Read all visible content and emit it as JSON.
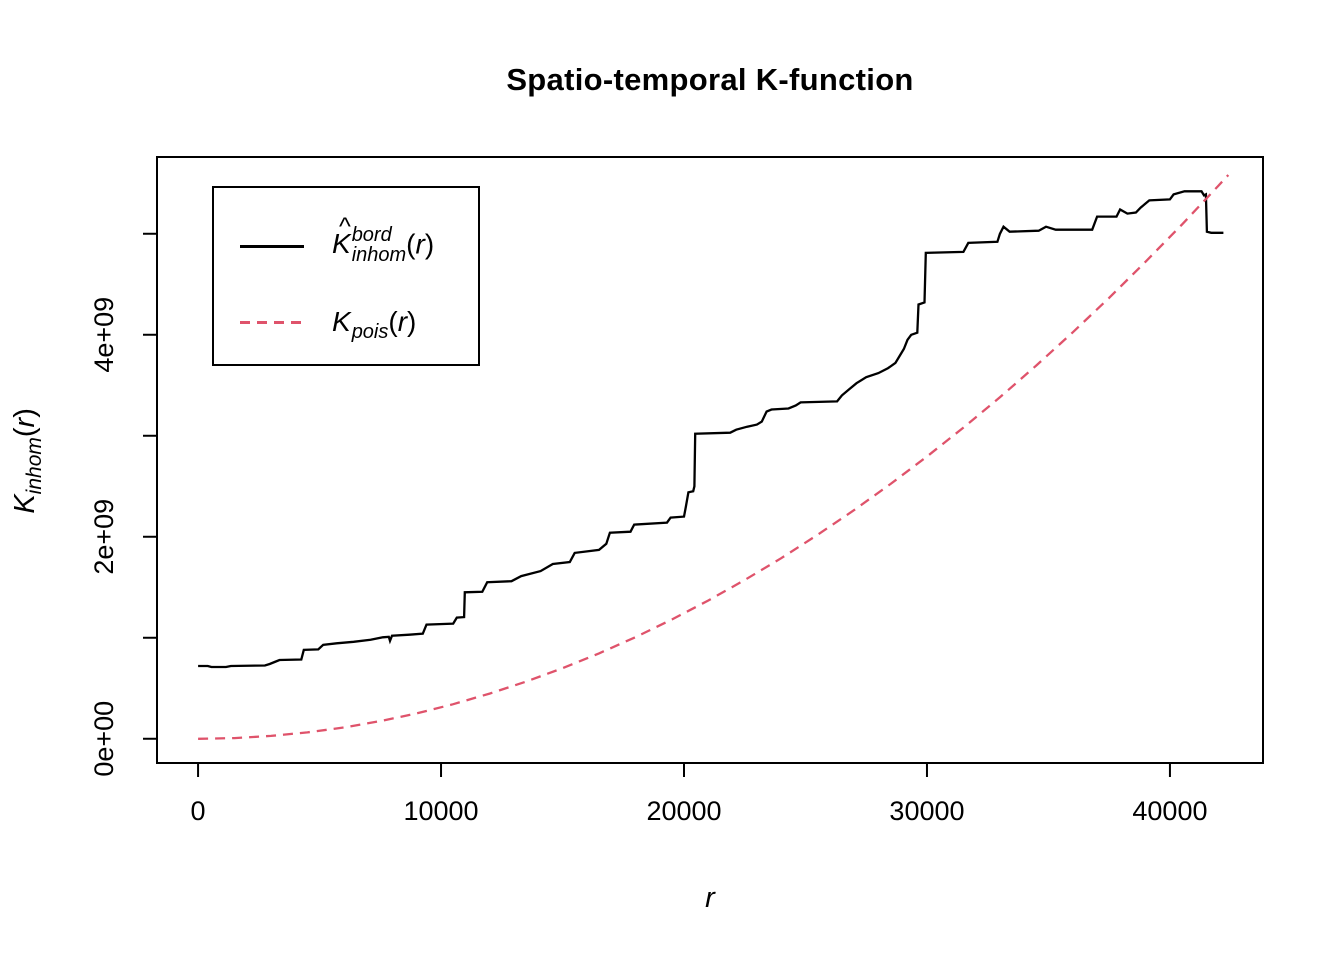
{
  "title": "Spatio-temporal K-function",
  "colors": {
    "foreground": "#000000",
    "background": "#ffffff",
    "inhom_curve": "#000000",
    "pois_curve": "#DF536B"
  },
  "x_axis": {
    "label": "r"
  },
  "y_axis": {
    "label_main": "K",
    "label_sub": "inhom",
    "label_open": "(",
    "label_arg": "r",
    "label_close": ")"
  },
  "legend": {
    "items": [
      {
        "hat": "^",
        "main": "K",
        "sup": "bord",
        "sub": "inhom",
        "open": "(",
        "arg": "r",
        "close": ")",
        "line_style": "solid",
        "color": "#000000"
      },
      {
        "main": "K",
        "sub": "pois",
        "open": "(",
        "arg": "r",
        "close": ")",
        "line_style": "dashed",
        "color": "#DF536B"
      }
    ]
  },
  "chart_data": {
    "type": "line",
    "title": "Spatio-temporal K-function",
    "xlabel": "r",
    "ylabel": "K_inhom(r)",
    "xlim": [
      -1690,
      43830
    ],
    "ylim": [
      -240000000.0,
      5760000000.0
    ],
    "grid": false,
    "legend_position": "top-left",
    "x_ticks": [
      {
        "v": 0,
        "label": "0"
      },
      {
        "v": 10000,
        "label": "10000"
      },
      {
        "v": 20000,
        "label": "20000"
      },
      {
        "v": 30000,
        "label": "30000"
      },
      {
        "v": 40000,
        "label": "40000"
      }
    ],
    "y_ticks": [
      {
        "v": 0,
        "label": "0e+00"
      },
      {
        "v": 1000000000.0
      },
      {
        "v": 2000000000.0,
        "label": "2e+09"
      },
      {
        "v": 3000000000.0
      },
      {
        "v": 4000000000.0,
        "label": "4e+09"
      },
      {
        "v": 5000000000.0
      }
    ],
    "series": [
      {
        "name": "K-inhom-bord-estimate",
        "style": "solid",
        "color": "#000000",
        "points": [
          [
            0,
            720000000.0
          ],
          [
            400,
            720000000.0
          ],
          [
            550,
            710000000.0
          ],
          [
            1150,
            710000000.0
          ],
          [
            1350,
            720000000.0
          ],
          [
            2750,
            725000000.0
          ],
          [
            2950,
            740000000.0
          ],
          [
            3150,
            760000000.0
          ],
          [
            3350,
            780000000.0
          ],
          [
            4250,
            785000000.0
          ],
          [
            4350,
            880000000.0
          ],
          [
            4950,
            885000000.0
          ],
          [
            5150,
            930000000.0
          ],
          [
            5700,
            945000000.0
          ],
          [
            6400,
            960000000.0
          ],
          [
            7100,
            980000000.0
          ],
          [
            7600,
            1005000000.0
          ],
          [
            7850,
            1010000000.0
          ],
          [
            7900,
            970000000.0
          ],
          [
            7980,
            1020000000.0
          ],
          [
            8700,
            1030000000.0
          ],
          [
            9250,
            1040000000.0
          ],
          [
            9400,
            1130000000.0
          ],
          [
            10500,
            1140000000.0
          ],
          [
            10650,
            1200000000.0
          ],
          [
            10950,
            1205000000.0
          ],
          [
            10980,
            1450000000.0
          ],
          [
            11700,
            1455000000.0
          ],
          [
            11900,
            1550000000.0
          ],
          [
            12900,
            1560000000.0
          ],
          [
            13300,
            1610000000.0
          ],
          [
            14100,
            1660000000.0
          ],
          [
            14600,
            1730000000.0
          ],
          [
            15300,
            1750000000.0
          ],
          [
            15500,
            1840000000.0
          ],
          [
            16500,
            1870000000.0
          ],
          [
            16800,
            1930000000.0
          ],
          [
            16950,
            2040000000.0
          ],
          [
            17800,
            2050000000.0
          ],
          [
            17950,
            2120000000.0
          ],
          [
            19300,
            2140000000.0
          ],
          [
            19450,
            2190000000.0
          ],
          [
            20000,
            2200000000.0
          ],
          [
            20080,
            2300000000.0
          ],
          [
            20180,
            2440000000.0
          ],
          [
            20380,
            2450000000.0
          ],
          [
            20430,
            2500000000.0
          ],
          [
            20460,
            3020000000.0
          ],
          [
            21900,
            3030000000.0
          ],
          [
            22150,
            3060000000.0
          ],
          [
            22600,
            3090000000.0
          ],
          [
            23000,
            3110000000.0
          ],
          [
            23200,
            3140000000.0
          ],
          [
            23400,
            3240000000.0
          ],
          [
            23600,
            3260000000.0
          ],
          [
            24300,
            3270000000.0
          ],
          [
            24600,
            3300000000.0
          ],
          [
            24800,
            3330000000.0
          ],
          [
            26300,
            3340000000.0
          ],
          [
            26500,
            3400000000.0
          ],
          [
            26800,
            3460000000.0
          ],
          [
            27100,
            3520000000.0
          ],
          [
            27500,
            3580000000.0
          ],
          [
            28000,
            3620000000.0
          ],
          [
            28400,
            3670000000.0
          ],
          [
            28700,
            3720000000.0
          ],
          [
            28900,
            3800000000.0
          ],
          [
            29050,
            3860000000.0
          ],
          [
            29200,
            3950000000.0
          ],
          [
            29350,
            4000000000.0
          ],
          [
            29600,
            4020000000.0
          ],
          [
            29650,
            4300000000.0
          ],
          [
            29900,
            4320000000.0
          ],
          [
            29950,
            4810000000.0
          ],
          [
            31500,
            4820000000.0
          ],
          [
            31700,
            4910000000.0
          ],
          [
            32900,
            4920000000.0
          ],
          [
            33000,
            5000000000.0
          ],
          [
            33150,
            5070000000.0
          ],
          [
            33400,
            5020000000.0
          ],
          [
            34600,
            5030000000.0
          ],
          [
            34900,
            5070000000.0
          ],
          [
            35300,
            5040000000.0
          ],
          [
            36800,
            5040000000.0
          ],
          [
            37000,
            5170000000.0
          ],
          [
            37800,
            5170000000.0
          ],
          [
            37950,
            5240000000.0
          ],
          [
            38250,
            5200000000.0
          ],
          [
            38600,
            5210000000.0
          ],
          [
            38800,
            5260000000.0
          ],
          [
            39150,
            5330000000.0
          ],
          [
            40000,
            5340000000.0
          ],
          [
            40150,
            5390000000.0
          ],
          [
            40600,
            5420000000.0
          ],
          [
            41300,
            5420000000.0
          ],
          [
            41400,
            5380000000.0
          ],
          [
            41480,
            5390000000.0
          ],
          [
            41520,
            5020000000.0
          ],
          [
            41700,
            5010000000.0
          ],
          [
            42200,
            5010000000.0
          ]
        ]
      },
      {
        "name": "K-pois-theoretical",
        "style": "dashed",
        "color": "#DF536B",
        "points": [
          [
            0,
            0
          ],
          [
            1500,
            6990000.0
          ],
          [
            3000,
            27940000.0
          ],
          [
            4500,
            62900000.0
          ],
          [
            6000,
            111800000.0
          ],
          [
            7500,
            174700000.0
          ],
          [
            9000,
            251500000.0
          ],
          [
            10500,
            342300000.0
          ],
          [
            12000,
            447100000.0
          ],
          [
            13500,
            566000000.0
          ],
          [
            15000,
            699000000.0
          ],
          [
            16500,
            845000000.0
          ],
          [
            18000,
            1006000000.0
          ],
          [
            19500,
            1181000000.0
          ],
          [
            21000,
            1369000000.0
          ],
          [
            22500,
            1572000000.0
          ],
          [
            24000,
            1788000000.0
          ],
          [
            25500,
            2019000000.0
          ],
          [
            27000,
            2264000000.0
          ],
          [
            28500,
            2522000000.0
          ],
          [
            30000,
            2795000000.0
          ],
          [
            31500,
            3081000000.0
          ],
          [
            33000,
            3381000000.0
          ],
          [
            34500,
            3696000000.0
          ],
          [
            36000,
            4024000000.0
          ],
          [
            37500,
            4366000000.0
          ],
          [
            39000,
            4723000000.0
          ],
          [
            40500,
            5093000000.0
          ],
          [
            42000,
            5477000000.0
          ],
          [
            42400,
            5582000000.0
          ]
        ]
      }
    ]
  }
}
